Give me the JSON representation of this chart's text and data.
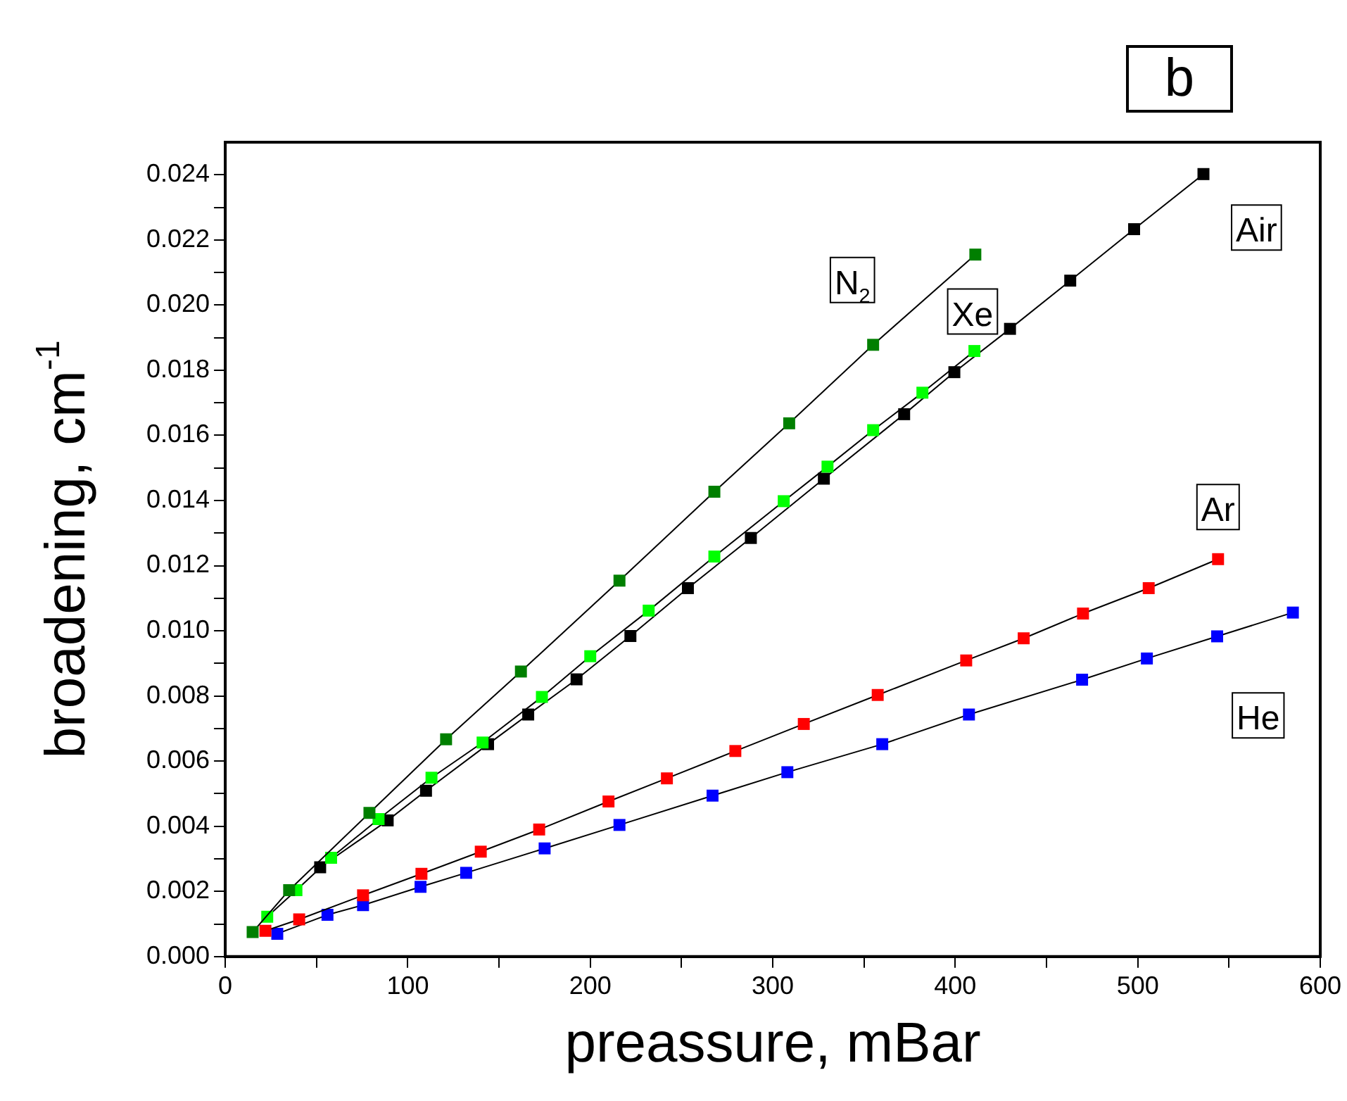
{
  "chart_data": {
    "type": "line",
    "title": "b",
    "xlabel": "preassure, mBar",
    "ylabel": "broadening, cm$^{-1}$",
    "xlim": [
      0,
      600
    ],
    "ylim": [
      0,
      0.025
    ],
    "xticks": [
      0,
      {
        "value": 50,
        "label": null
      },
      100,
      {
        "value": 150,
        "label": null
      },
      200,
      {
        "value": 250,
        "label": null
      },
      300,
      {
        "value": 350,
        "label": null
      },
      400,
      {
        "value": 450,
        "label": null
      },
      500,
      {
        "value": 550,
        "label": null
      },
      600
    ],
    "yticks": [
      {
        "value": 0,
        "label": "0.000"
      },
      {
        "value": 0.001,
        "label": null
      },
      {
        "value": 0.002,
        "label": "0.002"
      },
      {
        "value": 0.003,
        "label": null
      },
      {
        "value": 0.004,
        "label": "0.004"
      },
      {
        "value": 0.005,
        "label": null
      },
      {
        "value": 0.006,
        "label": "0.006"
      },
      {
        "value": 0.007,
        "label": null
      },
      {
        "value": 0.008,
        "label": "0.008"
      },
      {
        "value": 0.009,
        "label": null
      },
      {
        "value": 0.01,
        "label": "0.010"
      },
      {
        "value": 0.011,
        "label": null
      },
      {
        "value": 0.012,
        "label": "0.012"
      },
      {
        "value": 0.013,
        "label": null
      },
      {
        "value": 0.014,
        "label": "0.014"
      },
      {
        "value": 0.015,
        "label": null
      },
      {
        "value": 0.016,
        "label": "0.016"
      },
      {
        "value": 0.017,
        "label": null
      },
      {
        "value": 0.018,
        "label": "0.018"
      },
      {
        "value": 0.019,
        "label": null
      },
      {
        "value": 0.02,
        "label": "0.020"
      },
      {
        "value": 0.021,
        "label": null
      },
      {
        "value": 0.022,
        "label": "0.022"
      },
      {
        "value": 0.023,
        "label": null
      },
      {
        "value": 0.024,
        "label": "0.024"
      }
    ],
    "grid": false,
    "legend": false,
    "marker": "square",
    "line_style": "solid",
    "series": [
      {
        "name": "N$_{2}$",
        "color": "#007f00",
        "x": [
          15,
          35,
          79,
          121,
          162,
          216,
          268,
          309,
          355,
          411
        ],
        "values": [
          0.00075,
          0.00204,
          0.00441,
          0.00667,
          0.00875,
          0.01154,
          0.01427,
          0.01637,
          0.01878,
          0.02155
        ]
      },
      {
        "name": "Xe",
        "color": "#00ff00",
        "x": [
          23,
          39,
          58,
          84,
          113,
          141,
          173.5,
          200,
          232,
          268,
          306,
          330,
          355,
          382,
          410.5
        ],
        "values": [
          0.00122,
          0.00204,
          0.00303,
          0.00422,
          0.00549,
          0.00657,
          0.00797,
          0.00922,
          0.01062,
          0.01228,
          0.01398,
          0.01504,
          0.01616,
          0.01731,
          0.01859
        ]
      },
      {
        "name": "Air",
        "color": "#000000",
        "x": [
          52,
          89,
          110,
          144,
          166,
          192.5,
          222,
          253.5,
          288,
          328,
          372,
          399.5,
          430,
          463,
          498,
          536
        ],
        "values": [
          0.00274,
          0.00418,
          0.00509,
          0.00652,
          0.00743,
          0.00851,
          0.00984,
          0.01131,
          0.01285,
          0.01467,
          0.01665,
          0.01794,
          0.01927,
          0.02075,
          0.02233,
          0.02402
        ]
      },
      {
        "name": "Ar",
        "color": "#ff0000",
        "x": [
          22,
          40.5,
          75.5,
          107.5,
          140,
          172,
          210,
          242,
          279.5,
          317,
          357.5,
          406,
          437.5,
          470,
          506,
          544
        ],
        "values": [
          0.00079,
          0.00114,
          0.00188,
          0.00254,
          0.00322,
          0.0039,
          0.00476,
          0.00547,
          0.00631,
          0.00714,
          0.00803,
          0.00909,
          0.00977,
          0.01053,
          0.01131,
          0.0122
        ]
      },
      {
        "name": "He",
        "color": "#0000ff",
        "x": [
          28.5,
          56,
          75.5,
          107,
          132,
          175,
          216,
          267,
          308,
          360,
          407.5,
          469.5,
          505,
          543.5,
          585
        ],
        "values": [
          0.0007,
          0.00128,
          0.00158,
          0.00214,
          0.00257,
          0.00332,
          0.00404,
          0.00494,
          0.00566,
          0.00652,
          0.00743,
          0.0085,
          0.00915,
          0.00983,
          0.01056
        ]
      }
    ]
  }
}
